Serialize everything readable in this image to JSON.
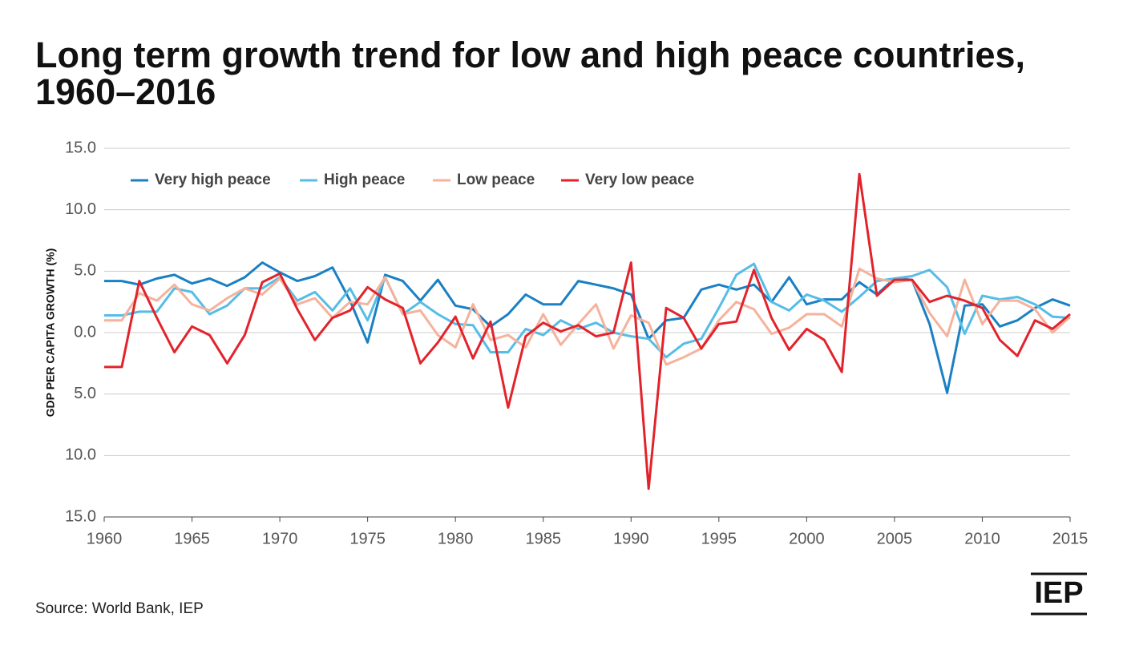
{
  "chart_data": {
    "type": "line",
    "title": "Long term growth trend for low and high peace countries, 1960–2016",
    "y_label": "GDP PER CAPITA GROWTH (%)",
    "source": "Source: World Bank, IEP",
    "logo": "IEP",
    "x": [
      1960,
      1961,
      1962,
      1963,
      1964,
      1965,
      1966,
      1967,
      1968,
      1969,
      1970,
      1971,
      1972,
      1973,
      1974,
      1975,
      1976,
      1977,
      1978,
      1979,
      1980,
      1981,
      1982,
      1983,
      1984,
      1985,
      1986,
      1987,
      1988,
      1989,
      1990,
      1991,
      1992,
      1993,
      1994,
      1995,
      1996,
      1997,
      1998,
      1999,
      2000,
      2001,
      2002,
      2003,
      2004,
      2005,
      2006,
      2007,
      2008,
      2009,
      2010,
      2011,
      2012,
      2013,
      2014,
      2015
    ],
    "xlim": [
      1960,
      2015
    ],
    "xticks": [
      1960,
      1965,
      1970,
      1975,
      1980,
      1985,
      1990,
      1995,
      2000,
      2005,
      2010,
      2015
    ],
    "ylim": [
      -15,
      15
    ],
    "yticks": [
      {
        "value": 15,
        "label": "15.0"
      },
      {
        "value": 10,
        "label": "10.0"
      },
      {
        "value": 5,
        "label": "5.0"
      },
      {
        "value": 0,
        "label": "0.0"
      },
      {
        "value": -5,
        "label": "5.0"
      },
      {
        "value": -10,
        "label": "10.0"
      },
      {
        "value": -15,
        "label": "15.0"
      }
    ],
    "grid": true,
    "legend": "top-left",
    "series": [
      {
        "name": "Very high peace",
        "color": "#1a80c4",
        "values": [
          4.2,
          4.2,
          3.9,
          4.4,
          4.7,
          4.0,
          4.4,
          3.8,
          4.5,
          5.7,
          4.9,
          4.2,
          4.6,
          5.3,
          2.6,
          -0.8,
          4.7,
          4.2,
          2.6,
          4.3,
          2.2,
          1.9,
          0.5,
          1.5,
          3.1,
          2.3,
          2.3,
          4.2,
          3.9,
          3.6,
          3.1,
          -0.5,
          1.0,
          1.2,
          3.5,
          3.9,
          3.5,
          3.9,
          2.5,
          4.5,
          2.3,
          2.7,
          2.7,
          4.1,
          3.1,
          4.4,
          4.3,
          0.7,
          -4.9,
          2.2,
          2.3,
          0.5,
          1.0,
          2.0,
          2.7,
          2.2
        ]
      },
      {
        "name": "High peace",
        "color": "#55bde6",
        "values": [
          1.4,
          1.4,
          1.7,
          1.7,
          3.6,
          3.3,
          1.5,
          2.2,
          3.6,
          3.6,
          4.5,
          2.6,
          3.3,
          1.8,
          3.6,
          1.0,
          4.5,
          1.5,
          2.5,
          1.5,
          0.7,
          0.6,
          -1.6,
          -1.6,
          0.3,
          -0.2,
          1.0,
          0.3,
          0.8,
          0.0,
          -0.3,
          -0.5,
          -2.0,
          -0.9,
          -0.5,
          2.0,
          4.7,
          5.6,
          2.5,
          1.8,
          3.1,
          2.6,
          1.7,
          2.9,
          4.2,
          4.4,
          4.6,
          5.1,
          3.7,
          -0.1,
          3.0,
          2.7,
          2.9,
          2.3,
          1.3,
          1.2
        ]
      },
      {
        "name": "Low peace",
        "color": "#f5b29c",
        "values": [
          1.0,
          1.0,
          3.2,
          2.6,
          3.9,
          2.3,
          1.8,
          2.8,
          3.6,
          3.1,
          4.4,
          2.3,
          2.8,
          1.2,
          2.5,
          2.3,
          4.5,
          1.5,
          1.8,
          -0.2,
          -1.2,
          2.3,
          -0.6,
          -0.2,
          -1.2,
          1.5,
          -1.0,
          0.7,
          2.3,
          -1.3,
          1.4,
          0.8,
          -2.6,
          -2.0,
          -1.3,
          1.0,
          2.5,
          1.9,
          -0.1,
          0.4,
          1.5,
          1.5,
          0.5,
          5.2,
          4.4,
          4.1,
          4.3,
          1.6,
          -0.3,
          4.3,
          0.7,
          2.6,
          2.6,
          1.9,
          0.0,
          1.3
        ]
      },
      {
        "name": "Very low peace",
        "color": "#e3232c",
        "values": [
          -2.8,
          -2.8,
          4.2,
          1.2,
          -1.6,
          0.5,
          -0.2,
          -2.5,
          -0.2,
          4.1,
          4.8,
          1.9,
          -0.6,
          1.2,
          1.8,
          3.7,
          2.7,
          2.0,
          -2.5,
          -0.8,
          1.3,
          -2.1,
          0.9,
          -6.1,
          -0.3,
          0.8,
          0.1,
          0.6,
          -0.3,
          0.0,
          5.7,
          -12.7,
          2.0,
          1.2,
          -1.3,
          0.7,
          0.9,
          5.1,
          1.2,
          -1.4,
          0.3,
          -0.6,
          -3.2,
          12.9,
          3.0,
          4.3,
          4.3,
          2.5,
          3.0,
          2.6,
          2.0,
          -0.6,
          -1.9,
          1.0,
          0.3,
          1.5
        ]
      }
    ]
  }
}
